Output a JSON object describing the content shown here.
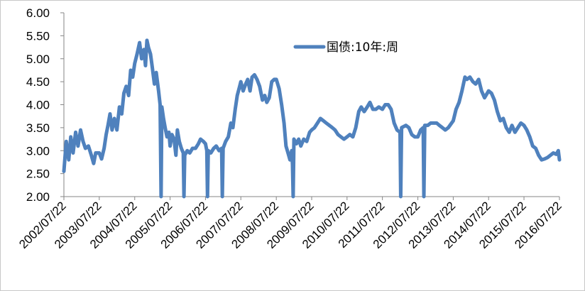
{
  "chart_data": {
    "type": "line",
    "legend": {
      "entries": [
        "国债:10年:周"
      ],
      "placement": "top-right"
    },
    "y_range": [
      2.0,
      6.0
    ],
    "y_ticks": [
      "6.00",
      "5.50",
      "5.00",
      "4.50",
      "4.00",
      "3.50",
      "3.00",
      "2.50",
      "2.00"
    ],
    "x_ticks": [
      "2002/07/22",
      "2003/07/22",
      "2004/07/22",
      "2005/07/22",
      "2006/07/22",
      "2007/07/22",
      "2008/07/22",
      "2009/07/22",
      "2010/07/22",
      "2011/07/22",
      "2012/07/22",
      "2013/07/22",
      "2014/07/22",
      "2015/07/22",
      "2016/07/22"
    ],
    "grid": false,
    "colors": {
      "series": "#4f81bd"
    },
    "series": [
      {
        "name": "国债:10年:周",
        "points": [
          [
            "2002/07/22",
            2.55
          ],
          [
            "2002/08/15",
            3.2
          ],
          [
            "2002/09/10",
            2.8
          ],
          [
            "2002/10/01",
            3.3
          ],
          [
            "2002/10/25",
            2.95
          ],
          [
            "2002/11/20",
            3.4
          ],
          [
            "2002/12/15",
            3.1
          ],
          [
            "2003/01/10",
            3.45
          ],
          [
            "2003/02/05",
            3.2
          ],
          [
            "2003/03/01",
            3.05
          ],
          [
            "2003/04/01",
            3.1
          ],
          [
            "2003/05/01",
            2.9
          ],
          [
            "2003/05/25",
            2.72
          ],
          [
            "2003/06/15",
            2.95
          ],
          [
            "2003/07/22",
            2.95
          ],
          [
            "2003/08/15",
            2.82
          ],
          [
            "2003/09/10",
            3.05
          ],
          [
            "2003/10/01",
            3.35
          ],
          [
            "2003/10/20",
            3.55
          ],
          [
            "2003/11/10",
            3.8
          ],
          [
            "2003/12/01",
            3.45
          ],
          [
            "2003/12/25",
            3.7
          ],
          [
            "2004/01/20",
            3.45
          ],
          [
            "2004/02/15",
            3.95
          ],
          [
            "2004/03/10",
            3.8
          ],
          [
            "2004/04/01",
            4.25
          ],
          [
            "2004/04/25",
            4.4
          ],
          [
            "2004/05/20",
            4.2
          ],
          [
            "2004/06/10",
            4.75
          ],
          [
            "2004/07/01",
            4.6
          ],
          [
            "2004/07/22",
            4.9
          ],
          [
            "2004/08/15",
            5.1
          ],
          [
            "2004/09/10",
            5.35
          ],
          [
            "2004/10/01",
            5.0
          ],
          [
            "2004/10/25",
            5.2
          ],
          [
            "2004/11/10",
            4.85
          ],
          [
            "2004/11/25",
            5.4
          ],
          [
            "2004/12/10",
            5.25
          ],
          [
            "2005/01/01",
            5.1
          ],
          [
            "2005/01/20",
            4.8
          ],
          [
            "2005/02/10",
            4.45
          ],
          [
            "2005/03/01",
            4.7
          ],
          [
            "2005/03/25",
            4.3
          ],
          [
            "2005/04/10",
            4.0
          ],
          [
            "2005/04/20",
            2.0
          ],
          [
            "2005/04/28",
            3.95
          ],
          [
            "2005/05/15",
            3.7
          ],
          [
            "2005/06/01",
            3.5
          ],
          [
            "2005/06/20",
            3.3
          ],
          [
            "2005/07/10",
            3.4
          ],
          [
            "2005/07/22",
            3.1
          ],
          [
            "2005/08/10",
            3.35
          ],
          [
            "2005/09/01",
            3.25
          ],
          [
            "2005/09/20",
            2.9
          ],
          [
            "2005/10/05",
            3.45
          ],
          [
            "2005/10/25",
            3.2
          ],
          [
            "2005/11/15",
            3.05
          ],
          [
            "2005/12/05",
            2.95
          ],
          [
            "2005/12/12",
            2.0
          ],
          [
            "2005/12/20",
            2.9
          ],
          [
            "2006/01/15",
            3.0
          ],
          [
            "2006/02/10",
            2.95
          ],
          [
            "2006/03/10",
            3.05
          ],
          [
            "2006/04/10",
            3.05
          ],
          [
            "2006/05/10",
            3.15
          ],
          [
            "2006/06/01",
            3.25
          ],
          [
            "2006/07/01",
            3.2
          ],
          [
            "2006/07/22",
            3.15
          ],
          [
            "2006/08/05",
            3.0
          ],
          [
            "2006/08/12",
            2.0
          ],
          [
            "2006/08/20",
            3.0
          ],
          [
            "2006/09/15",
            2.95
          ],
          [
            "2006/10/15",
            3.05
          ],
          [
            "2006/11/10",
            3.1
          ],
          [
            "2006/12/10",
            3.0
          ],
          [
            "2007/01/05",
            3.05
          ],
          [
            "2007/01/12",
            2.0
          ],
          [
            "2007/01/20",
            3.05
          ],
          [
            "2007/02/15",
            3.2
          ],
          [
            "2007/03/15",
            3.3
          ],
          [
            "2007/04/10",
            3.6
          ],
          [
            "2007/05/01",
            3.5
          ],
          [
            "2007/05/25",
            3.9
          ],
          [
            "2007/06/15",
            4.2
          ],
          [
            "2007/07/10",
            4.4
          ],
          [
            "2007/07/22",
            4.5
          ],
          [
            "2007/08/15",
            4.3
          ],
          [
            "2007/09/10",
            4.45
          ],
          [
            "2007/10/01",
            4.55
          ],
          [
            "2007/10/25",
            4.3
          ],
          [
            "2007/11/15",
            4.6
          ],
          [
            "2007/12/10",
            4.65
          ],
          [
            "2008/01/05",
            4.55
          ],
          [
            "2008/02/01",
            4.4
          ],
          [
            "2008/03/01",
            4.1
          ],
          [
            "2008/03/25",
            4.2
          ],
          [
            "2008/04/15",
            4.05
          ],
          [
            "2008/05/10",
            4.15
          ],
          [
            "2008/06/05",
            4.5
          ],
          [
            "2008/07/01",
            4.55
          ],
          [
            "2008/07/22",
            4.55
          ],
          [
            "2008/08/20",
            4.35
          ],
          [
            "2008/09/15",
            4.0
          ],
          [
            "2008/10/10",
            3.6
          ],
          [
            "2008/10/30",
            3.1
          ],
          [
            "2008/11/20",
            2.95
          ],
          [
            "2008/12/10",
            2.8
          ],
          [
            "2008/12/28",
            3.0
          ],
          [
            "2009/01/05",
            2.7
          ],
          [
            "2009/01/12",
            2.0
          ],
          [
            "2009/01/20",
            3.25
          ],
          [
            "2009/02/15",
            3.15
          ],
          [
            "2009/03/10",
            3.25
          ],
          [
            "2009/04/01",
            3.1
          ],
          [
            "2009/05/01",
            3.25
          ],
          [
            "2009/06/01",
            3.2
          ],
          [
            "2009/07/01",
            3.4
          ],
          [
            "2009/07/22",
            3.45
          ],
          [
            "2009/08/20",
            3.5
          ],
          [
            "2009/09/20",
            3.6
          ],
          [
            "2009/10/20",
            3.7
          ],
          [
            "2009/11/20",
            3.65
          ],
          [
            "2009/12/20",
            3.6
          ],
          [
            "2010/01/20",
            3.55
          ],
          [
            "2010/02/20",
            3.5
          ],
          [
            "2010/03/20",
            3.45
          ],
          [
            "2010/04/20",
            3.35
          ],
          [
            "2010/05/20",
            3.3
          ],
          [
            "2010/06/20",
            3.25
          ],
          [
            "2010/07/22",
            3.3
          ],
          [
            "2010/08/20",
            3.35
          ],
          [
            "2010/09/20",
            3.3
          ],
          [
            "2010/10/20",
            3.5
          ],
          [
            "2010/11/20",
            3.85
          ],
          [
            "2010/12/15",
            3.95
          ],
          [
            "2011/01/15",
            3.85
          ],
          [
            "2011/02/15",
            3.95
          ],
          [
            "2011/03/15",
            4.05
          ],
          [
            "2011/04/15",
            3.9
          ],
          [
            "2011/05/15",
            3.9
          ],
          [
            "2011/06/15",
            3.95
          ],
          [
            "2011/07/22",
            3.9
          ],
          [
            "2011/08/20",
            4.0
          ],
          [
            "2011/09/20",
            4.0
          ],
          [
            "2011/10/20",
            3.9
          ],
          [
            "2011/11/20",
            3.6
          ],
          [
            "2011/12/20",
            3.45
          ],
          [
            "2012/01/20",
            3.4
          ],
          [
            "2012/01/27",
            2.0
          ],
          [
            "2012/02/05",
            3.5
          ],
          [
            "2012/03/20",
            3.55
          ],
          [
            "2012/04/20",
            3.5
          ],
          [
            "2012/05/20",
            3.35
          ],
          [
            "2012/06/20",
            3.3
          ],
          [
            "2012/07/22",
            3.3
          ],
          [
            "2012/08/20",
            3.45
          ],
          [
            "2012/09/15",
            3.5
          ],
          [
            "2012/09/22",
            2.0
          ],
          [
            "2012/10/01",
            3.55
          ],
          [
            "2012/11/01",
            3.55
          ],
          [
            "2012/12/01",
            3.6
          ],
          [
            "2013/01/01",
            3.6
          ],
          [
            "2013/02/01",
            3.6
          ],
          [
            "2013/03/01",
            3.55
          ],
          [
            "2013/04/01",
            3.5
          ],
          [
            "2013/05/01",
            3.45
          ],
          [
            "2013/06/01",
            3.5
          ],
          [
            "2013/07/22",
            3.65
          ],
          [
            "2013/08/20",
            3.9
          ],
          [
            "2013/09/20",
            4.05
          ],
          [
            "2013/10/20",
            4.3
          ],
          [
            "2013/11/20",
            4.6
          ],
          [
            "2013/12/10",
            4.55
          ],
          [
            "2014/01/10",
            4.6
          ],
          [
            "2014/02/10",
            4.5
          ],
          [
            "2014/03/10",
            4.45
          ],
          [
            "2014/04/10",
            4.55
          ],
          [
            "2014/05/10",
            4.3
          ],
          [
            "2014/06/10",
            4.15
          ],
          [
            "2014/07/22",
            4.3
          ],
          [
            "2014/08/20",
            4.25
          ],
          [
            "2014/09/20",
            4.1
          ],
          [
            "2014/10/20",
            3.85
          ],
          [
            "2014/11/20",
            3.65
          ],
          [
            "2014/12/20",
            3.7
          ],
          [
            "2015/01/20",
            3.5
          ],
          [
            "2015/02/20",
            3.4
          ],
          [
            "2015/03/20",
            3.55
          ],
          [
            "2015/04/20",
            3.4
          ],
          [
            "2015/05/20",
            3.5
          ],
          [
            "2015/06/20",
            3.6
          ],
          [
            "2015/07/22",
            3.55
          ],
          [
            "2015/08/20",
            3.45
          ],
          [
            "2015/09/20",
            3.3
          ],
          [
            "2015/10/20",
            3.1
          ],
          [
            "2015/11/20",
            3.05
          ],
          [
            "2015/12/20",
            2.9
          ],
          [
            "2016/01/20",
            2.8
          ],
          [
            "2016/02/20",
            2.82
          ],
          [
            "2016/03/20",
            2.85
          ],
          [
            "2016/04/20",
            2.9
          ],
          [
            "2016/05/20",
            2.95
          ],
          [
            "2016/06/20",
            2.92
          ],
          [
            "2016/07/10",
            3.0
          ],
          [
            "2016/07/22",
            2.8
          ]
        ]
      }
    ]
  }
}
